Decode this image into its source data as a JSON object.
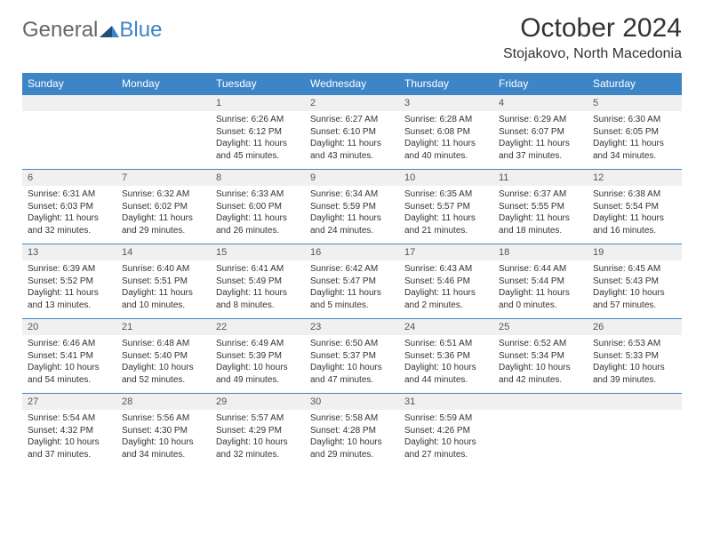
{
  "logo": {
    "text1": "General",
    "text2": "Blue"
  },
  "title": "October 2024",
  "location": "Stojakovo, North Macedonia",
  "colors": {
    "header_bg": "#3d85c6",
    "daynum_bg": "#f0f0f0",
    "border": "#3d85c6",
    "text": "#333333",
    "logo_blue": "#3d85c6"
  },
  "days": [
    "Sunday",
    "Monday",
    "Tuesday",
    "Wednesday",
    "Thursday",
    "Friday",
    "Saturday"
  ],
  "weeks": [
    [
      null,
      null,
      {
        "n": "1",
        "sr": "Sunrise: 6:26 AM",
        "ss": "Sunset: 6:12 PM",
        "dl": "Daylight: 11 hours and 45 minutes."
      },
      {
        "n": "2",
        "sr": "Sunrise: 6:27 AM",
        "ss": "Sunset: 6:10 PM",
        "dl": "Daylight: 11 hours and 43 minutes."
      },
      {
        "n": "3",
        "sr": "Sunrise: 6:28 AM",
        "ss": "Sunset: 6:08 PM",
        "dl": "Daylight: 11 hours and 40 minutes."
      },
      {
        "n": "4",
        "sr": "Sunrise: 6:29 AM",
        "ss": "Sunset: 6:07 PM",
        "dl": "Daylight: 11 hours and 37 minutes."
      },
      {
        "n": "5",
        "sr": "Sunrise: 6:30 AM",
        "ss": "Sunset: 6:05 PM",
        "dl": "Daylight: 11 hours and 34 minutes."
      }
    ],
    [
      {
        "n": "6",
        "sr": "Sunrise: 6:31 AM",
        "ss": "Sunset: 6:03 PM",
        "dl": "Daylight: 11 hours and 32 minutes."
      },
      {
        "n": "7",
        "sr": "Sunrise: 6:32 AM",
        "ss": "Sunset: 6:02 PM",
        "dl": "Daylight: 11 hours and 29 minutes."
      },
      {
        "n": "8",
        "sr": "Sunrise: 6:33 AM",
        "ss": "Sunset: 6:00 PM",
        "dl": "Daylight: 11 hours and 26 minutes."
      },
      {
        "n": "9",
        "sr": "Sunrise: 6:34 AM",
        "ss": "Sunset: 5:59 PM",
        "dl": "Daylight: 11 hours and 24 minutes."
      },
      {
        "n": "10",
        "sr": "Sunrise: 6:35 AM",
        "ss": "Sunset: 5:57 PM",
        "dl": "Daylight: 11 hours and 21 minutes."
      },
      {
        "n": "11",
        "sr": "Sunrise: 6:37 AM",
        "ss": "Sunset: 5:55 PM",
        "dl": "Daylight: 11 hours and 18 minutes."
      },
      {
        "n": "12",
        "sr": "Sunrise: 6:38 AM",
        "ss": "Sunset: 5:54 PM",
        "dl": "Daylight: 11 hours and 16 minutes."
      }
    ],
    [
      {
        "n": "13",
        "sr": "Sunrise: 6:39 AM",
        "ss": "Sunset: 5:52 PM",
        "dl": "Daylight: 11 hours and 13 minutes."
      },
      {
        "n": "14",
        "sr": "Sunrise: 6:40 AM",
        "ss": "Sunset: 5:51 PM",
        "dl": "Daylight: 11 hours and 10 minutes."
      },
      {
        "n": "15",
        "sr": "Sunrise: 6:41 AM",
        "ss": "Sunset: 5:49 PM",
        "dl": "Daylight: 11 hours and 8 minutes."
      },
      {
        "n": "16",
        "sr": "Sunrise: 6:42 AM",
        "ss": "Sunset: 5:47 PM",
        "dl": "Daylight: 11 hours and 5 minutes."
      },
      {
        "n": "17",
        "sr": "Sunrise: 6:43 AM",
        "ss": "Sunset: 5:46 PM",
        "dl": "Daylight: 11 hours and 2 minutes."
      },
      {
        "n": "18",
        "sr": "Sunrise: 6:44 AM",
        "ss": "Sunset: 5:44 PM",
        "dl": "Daylight: 11 hours and 0 minutes."
      },
      {
        "n": "19",
        "sr": "Sunrise: 6:45 AM",
        "ss": "Sunset: 5:43 PM",
        "dl": "Daylight: 10 hours and 57 minutes."
      }
    ],
    [
      {
        "n": "20",
        "sr": "Sunrise: 6:46 AM",
        "ss": "Sunset: 5:41 PM",
        "dl": "Daylight: 10 hours and 54 minutes."
      },
      {
        "n": "21",
        "sr": "Sunrise: 6:48 AM",
        "ss": "Sunset: 5:40 PM",
        "dl": "Daylight: 10 hours and 52 minutes."
      },
      {
        "n": "22",
        "sr": "Sunrise: 6:49 AM",
        "ss": "Sunset: 5:39 PM",
        "dl": "Daylight: 10 hours and 49 minutes."
      },
      {
        "n": "23",
        "sr": "Sunrise: 6:50 AM",
        "ss": "Sunset: 5:37 PM",
        "dl": "Daylight: 10 hours and 47 minutes."
      },
      {
        "n": "24",
        "sr": "Sunrise: 6:51 AM",
        "ss": "Sunset: 5:36 PM",
        "dl": "Daylight: 10 hours and 44 minutes."
      },
      {
        "n": "25",
        "sr": "Sunrise: 6:52 AM",
        "ss": "Sunset: 5:34 PM",
        "dl": "Daylight: 10 hours and 42 minutes."
      },
      {
        "n": "26",
        "sr": "Sunrise: 6:53 AM",
        "ss": "Sunset: 5:33 PM",
        "dl": "Daylight: 10 hours and 39 minutes."
      }
    ],
    [
      {
        "n": "27",
        "sr": "Sunrise: 5:54 AM",
        "ss": "Sunset: 4:32 PM",
        "dl": "Daylight: 10 hours and 37 minutes."
      },
      {
        "n": "28",
        "sr": "Sunrise: 5:56 AM",
        "ss": "Sunset: 4:30 PM",
        "dl": "Daylight: 10 hours and 34 minutes."
      },
      {
        "n": "29",
        "sr": "Sunrise: 5:57 AM",
        "ss": "Sunset: 4:29 PM",
        "dl": "Daylight: 10 hours and 32 minutes."
      },
      {
        "n": "30",
        "sr": "Sunrise: 5:58 AM",
        "ss": "Sunset: 4:28 PM",
        "dl": "Daylight: 10 hours and 29 minutes."
      },
      {
        "n": "31",
        "sr": "Sunrise: 5:59 AM",
        "ss": "Sunset: 4:26 PM",
        "dl": "Daylight: 10 hours and 27 minutes."
      },
      null,
      null
    ]
  ]
}
